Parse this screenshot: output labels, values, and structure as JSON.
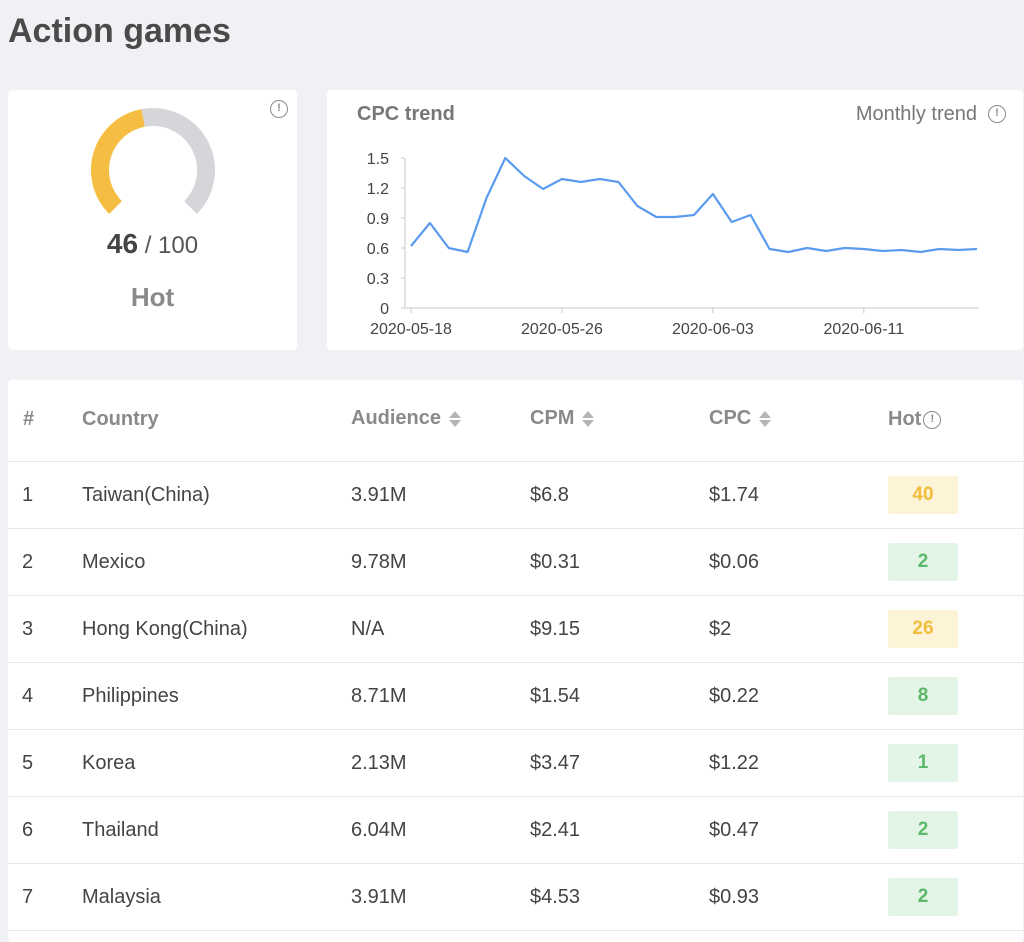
{
  "page": {
    "title": "Action games"
  },
  "hot_card": {
    "score": "46",
    "max": "/ 100",
    "label": "Hot",
    "gauge_fraction": 0.46,
    "colors": {
      "fill": "#f5bd41",
      "track": "#d5d6d9"
    }
  },
  "trend_card": {
    "title": "CPC trend",
    "link": "Monthly trend",
    "info_icon": "info-circle-icon"
  },
  "chart_data": {
    "type": "line",
    "title": "CPC trend",
    "x": [
      "2020-05-18",
      "2020-05-19",
      "2020-05-20",
      "2020-05-21",
      "2020-05-22",
      "2020-05-23",
      "2020-05-24",
      "2020-05-25",
      "2020-05-26",
      "2020-05-27",
      "2020-05-28",
      "2020-05-29",
      "2020-05-30",
      "2020-05-31",
      "2020-06-01",
      "2020-06-02",
      "2020-06-03",
      "2020-06-04",
      "2020-06-05",
      "2020-06-06",
      "2020-06-07",
      "2020-06-08",
      "2020-06-09",
      "2020-06-10",
      "2020-06-11",
      "2020-06-12",
      "2020-06-13",
      "2020-06-14",
      "2020-06-15",
      "2020-06-16",
      "2020-06-17"
    ],
    "series": [
      {
        "values": [
          0.62,
          0.85,
          0.6,
          0.56,
          1.1,
          1.5,
          1.32,
          1.19,
          1.29,
          1.26,
          1.29,
          1.26,
          1.02,
          0.91,
          0.91,
          0.93,
          1.14,
          0.86,
          0.93,
          0.59,
          0.56,
          0.6,
          0.57,
          0.6,
          0.59,
          0.57,
          0.58,
          0.56,
          0.59,
          0.58,
          0.59
        ]
      }
    ],
    "xticks": [
      "2020-05-18",
      "2020-05-26",
      "2020-06-03",
      "2020-06-11"
    ],
    "yticks": [
      "0",
      "0.3",
      "0.6",
      "0.9",
      "1.2",
      "1.5"
    ],
    "ylim": [
      0,
      1.5
    ],
    "color": "#5b9bef",
    "grid": false
  },
  "table": {
    "headers": {
      "num": "#",
      "country": "Country",
      "audience": "Audience",
      "cpm": "CPM",
      "cpc": "CPC",
      "hot": "Hot"
    },
    "rows": [
      {
        "num": "1",
        "country": "Taiwan(China)",
        "audience": "3.91M",
        "cpm": "$6.8",
        "cpc": "$1.74",
        "hot": "40",
        "level": "warm"
      },
      {
        "num": "2",
        "country": "Mexico",
        "audience": "9.78M",
        "cpm": "$0.31",
        "cpc": "$0.06",
        "hot": "2",
        "level": "cool"
      },
      {
        "num": "3",
        "country": "Hong Kong(China)",
        "audience": "N/A",
        "cpm": "$9.15",
        "cpc": "$2",
        "hot": "26",
        "level": "warm"
      },
      {
        "num": "4",
        "country": "Philippines",
        "audience": "8.71M",
        "cpm": "$1.54",
        "cpc": "$0.22",
        "hot": "8",
        "level": "cool"
      },
      {
        "num": "5",
        "country": "Korea",
        "audience": "2.13M",
        "cpm": "$3.47",
        "cpc": "$1.22",
        "hot": "1",
        "level": "cool"
      },
      {
        "num": "6",
        "country": "Thailand",
        "audience": "6.04M",
        "cpm": "$2.41",
        "cpc": "$0.47",
        "hot": "2",
        "level": "cool"
      },
      {
        "num": "7",
        "country": "Malaysia",
        "audience": "3.91M",
        "cpm": "$4.53",
        "cpc": "$0.93",
        "hot": "2",
        "level": "cool"
      }
    ],
    "badge_colors": {
      "warm": {
        "bg": "#fdf3d6",
        "fg": "#f1bd3c"
      },
      "cool": {
        "bg": "#e3f5e6",
        "fg": "#5cb86a"
      }
    }
  }
}
